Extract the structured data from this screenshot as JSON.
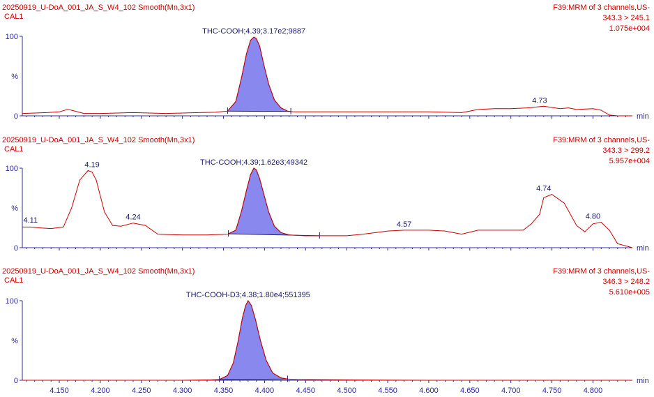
{
  "chart_data": [
    {
      "type": "line",
      "sample_name": "20250919_U-DoA_001_JA_S_W4_102 Smooth(Mn,3x1)",
      "function": "F39:MRM of 3 channels,US-",
      "sample_text": "CAL1",
      "transition": "343.3 > 245.1",
      "intensity": "1.075e+004",
      "ylabel": "%",
      "y_ticks": [
        "0",
        "100"
      ],
      "ylim": [
        0,
        100
      ],
      "xlim": [
        4.105,
        4.848
      ],
      "x": [
        4.105,
        4.12,
        4.135,
        4.15,
        4.16,
        4.165,
        4.18,
        4.2,
        4.22,
        4.24,
        4.26,
        4.28,
        4.3,
        4.32,
        4.34,
        4.355,
        4.365,
        4.372,
        4.378,
        4.383,
        4.387,
        4.39,
        4.394,
        4.399,
        4.405,
        4.412,
        4.42,
        4.428,
        4.435,
        4.45,
        4.5,
        4.55,
        4.6,
        4.64,
        4.65,
        4.66,
        4.68,
        4.7,
        4.72,
        4.73,
        4.74,
        4.76,
        4.77,
        4.78,
        4.8,
        4.81,
        4.82,
        4.83,
        4.848
      ],
      "values": [
        3,
        3.5,
        4,
        5,
        8,
        7,
        3,
        3,
        3.5,
        4,
        3.5,
        3,
        3.5,
        4,
        4.5,
        6,
        18,
        48,
        78,
        95,
        99,
        97,
        88,
        65,
        40,
        20,
        10,
        6,
        5,
        5,
        5,
        5,
        5,
        4,
        6,
        8,
        9,
        9,
        10,
        11,
        12,
        9,
        10,
        8,
        9,
        7,
        1,
        0,
        0
      ],
      "peaks": [
        {
          "label": "THC-COOH;4.39;3.17e2;9887",
          "start": 4.355,
          "end": 4.432,
          "kind": "integrated"
        },
        {
          "label": "4.73",
          "x": 4.735,
          "y": 12,
          "kind": "label"
        }
      ]
    },
    {
      "type": "line",
      "sample_name": "20250919_U-DoA_001_JA_S_W4_102 Smooth(Mn,3x1)",
      "function": "F39:MRM of 3 channels,US-",
      "sample_text": "CAL1",
      "transition": "343.3 > 299.2",
      "intensity": "5.957e+004",
      "ylabel": "%",
      "y_ticks": [
        "0",
        "100"
      ],
      "ylim": [
        0,
        100
      ],
      "xlim": [
        4.105,
        4.848
      ],
      "x": [
        4.105,
        4.115,
        4.125,
        4.14,
        4.155,
        4.165,
        4.175,
        4.185,
        4.19,
        4.195,
        4.205,
        4.215,
        4.225,
        4.24,
        4.255,
        4.27,
        4.3,
        4.33,
        4.355,
        4.365,
        4.372,
        4.378,
        4.383,
        4.387,
        4.39,
        4.394,
        4.399,
        4.405,
        4.412,
        4.42,
        4.43,
        4.45,
        4.47,
        4.5,
        4.52,
        4.55,
        4.57,
        4.6,
        4.62,
        4.64,
        4.66,
        4.7,
        4.715,
        4.725,
        4.735,
        4.74,
        4.75,
        4.765,
        4.78,
        4.79,
        4.8,
        4.81,
        4.82,
        4.83,
        4.848
      ],
      "values": [
        26,
        26,
        25,
        24,
        26,
        50,
        85,
        97,
        95,
        85,
        45,
        28,
        27,
        31,
        28,
        17,
        16,
        16,
        17,
        22,
        46,
        72,
        92,
        100,
        98,
        87,
        68,
        45,
        27,
        19,
        16,
        15,
        15,
        15,
        17,
        21,
        22,
        22,
        21,
        17,
        22,
        22,
        22,
        30,
        42,
        63,
        67,
        56,
        28,
        20,
        30,
        32,
        22,
        5,
        0
      ],
      "peaks": [
        {
          "label": "THC-COOH;4.39;1.62e3;49342",
          "start": 4.356,
          "end": 4.467,
          "kind": "integrated"
        },
        {
          "label": "4.11",
          "x": 4.115,
          "y": 27,
          "kind": "label"
        },
        {
          "label": "4.19",
          "x": 4.19,
          "y": 97,
          "kind": "label"
        },
        {
          "label": "4.24",
          "x": 4.24,
          "y": 31,
          "kind": "label"
        },
        {
          "label": "4.57",
          "x": 4.57,
          "y": 22,
          "kind": "label"
        },
        {
          "label": "4.74",
          "x": 4.74,
          "y": 67,
          "kind": "label"
        },
        {
          "label": "4.80",
          "x": 4.8,
          "y": 32,
          "kind": "label"
        }
      ]
    },
    {
      "type": "line",
      "sample_name": "20250919_U-DoA_001_JA_S_W4_102 Smooth(Mn,3x1)",
      "function": "F39:MRM of 3 channels,US-",
      "sample_text": "CAL1",
      "transition": "346.3 > 248.2",
      "intensity": "5.610e+005",
      "ylabel": "%",
      "y_ticks": [
        "0",
        "100"
      ],
      "ylim": [
        0,
        100
      ],
      "xlabel": "min",
      "x_ticks": [
        "4.150",
        "4.200",
        "4.250",
        "4.300",
        "4.350",
        "4.400",
        "4.450",
        "4.500",
        "4.550",
        "4.600",
        "4.650",
        "4.700",
        "4.750",
        "4.800"
      ],
      "xlim": [
        4.105,
        4.848
      ],
      "x": [
        4.105,
        4.2,
        4.3,
        4.335,
        4.345,
        4.355,
        4.362,
        4.368,
        4.373,
        4.377,
        4.38,
        4.384,
        4.389,
        4.395,
        4.402,
        4.41,
        4.42,
        4.428,
        4.44,
        4.5,
        4.55,
        4.6,
        4.7,
        4.848
      ],
      "values": [
        0,
        0,
        0,
        0.5,
        1,
        6,
        22,
        50,
        78,
        94,
        100,
        94,
        76,
        50,
        25,
        9,
        3,
        1.5,
        1,
        0.5,
        0.3,
        0,
        0,
        0
      ],
      "peaks": [
        {
          "label": "THC-COOH-D3;4.38;1.80e4;551395",
          "start": 4.345,
          "end": 4.428,
          "kind": "integrated"
        }
      ]
    }
  ]
}
